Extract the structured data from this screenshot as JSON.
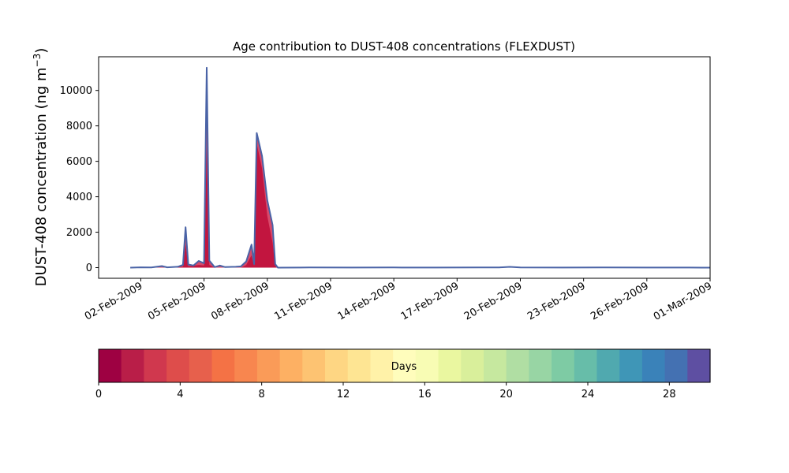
{
  "chart_data": {
    "type": "area",
    "title": "Age contribution to DUST-408 concentrations (FLEXDUST)",
    "ylabel_prefix": "DUST-408 concentration (ng m",
    "ylabel_superscript": "−3",
    "ylabel_suffix": ")",
    "xlabel": "",
    "date_start": "2009-01-31",
    "date_end": "2009-03-01",
    "ylim": [
      -600,
      11900
    ],
    "yticks": [
      0,
      2000,
      4000,
      6000,
      8000,
      10000
    ],
    "xticks": [
      "2009-02-02",
      "2009-02-05",
      "2009-02-08",
      "2009-02-11",
      "2009-02-14",
      "2009-02-17",
      "2009-02-20",
      "2009-02-23",
      "2009-02-26",
      "2009-03-01"
    ],
    "xtick_labels": [
      "02-Feb-2009",
      "05-Feb-2009",
      "08-Feb-2009",
      "11-Feb-2009",
      "14-Feb-2009",
      "17-Feb-2009",
      "20-Feb-2009",
      "23-Feb-2009",
      "26-Feb-2009",
      "01-Mar-2009"
    ],
    "grid": false,
    "series_total": {
      "name": "",
      "points": [
        [
          "2009-02-01T12:00",
          0
        ],
        [
          "2009-02-02T00:00",
          20
        ],
        [
          "2009-02-02T12:00",
          10
        ],
        [
          "2009-02-03T00:00",
          90
        ],
        [
          "2009-02-03T06:00",
          20
        ],
        [
          "2009-02-03T18:00",
          50
        ],
        [
          "2009-02-04T00:00",
          150
        ],
        [
          "2009-02-04T03:00",
          2280
        ],
        [
          "2009-02-04T06:00",
          180
        ],
        [
          "2009-02-04T12:00",
          120
        ],
        [
          "2009-02-04T18:00",
          380
        ],
        [
          "2009-02-05T00:00",
          250
        ],
        [
          "2009-02-05T03:00",
          11280
        ],
        [
          "2009-02-05T06:00",
          400
        ],
        [
          "2009-02-05T12:00",
          30
        ],
        [
          "2009-02-05T18:00",
          120
        ],
        [
          "2009-02-06T00:00",
          30
        ],
        [
          "2009-02-06T12:00",
          50
        ],
        [
          "2009-02-06T18:00",
          70
        ],
        [
          "2009-02-07T00:00",
          350
        ],
        [
          "2009-02-07T06:00",
          1300
        ],
        [
          "2009-02-07T09:00",
          200
        ],
        [
          "2009-02-07T12:00",
          7600
        ],
        [
          "2009-02-07T18:00",
          6300
        ],
        [
          "2009-02-08T00:00",
          3800
        ],
        [
          "2009-02-08T06:00",
          2400
        ],
        [
          "2009-02-08T09:00",
          200
        ],
        [
          "2009-02-08T12:00",
          0
        ],
        [
          "2009-02-10T00:00",
          10
        ],
        [
          "2009-02-12T00:00",
          5
        ],
        [
          "2009-02-14T00:00",
          8
        ],
        [
          "2009-02-16T00:00",
          5
        ],
        [
          "2009-02-18T00:00",
          10
        ],
        [
          "2009-02-19T00:00",
          15
        ],
        [
          "2009-02-19T12:00",
          45
        ],
        [
          "2009-02-20T00:00",
          10
        ],
        [
          "2009-02-22T00:00",
          5
        ],
        [
          "2009-02-24T00:00",
          8
        ],
        [
          "2009-02-26T00:00",
          5
        ],
        [
          "2009-02-28T00:00",
          5
        ],
        [
          "2009-03-01T00:00",
          0
        ]
      ]
    },
    "series_young": {
      "name": "",
      "points": [
        [
          "2009-02-03T00:00",
          0
        ],
        [
          "2009-02-04T00:00",
          60
        ],
        [
          "2009-02-04T03:00",
          1300
        ],
        [
          "2009-02-04T06:00",
          80
        ],
        [
          "2009-02-04T18:00",
          150
        ],
        [
          "2009-02-05T00:00",
          120
        ],
        [
          "2009-02-05T03:00",
          6800
        ],
        [
          "2009-02-05T06:00",
          150
        ],
        [
          "2009-02-05T12:00",
          0
        ],
        [
          "2009-02-06T18:00",
          0
        ],
        [
          "2009-02-07T00:00",
          150
        ],
        [
          "2009-02-07T06:00",
          700
        ],
        [
          "2009-02-07T09:00",
          100
        ],
        [
          "2009-02-07T12:00",
          7000
        ],
        [
          "2009-02-07T18:00",
          5600
        ],
        [
          "2009-02-08T00:00",
          2900
        ],
        [
          "2009-02-08T06:00",
          1400
        ],
        [
          "2009-02-08T09:00",
          100
        ],
        [
          "2009-02-08T12:00",
          0
        ]
      ]
    }
  },
  "colorbar": {
    "label": "Days",
    "vmin": 0,
    "vmax": 30,
    "ticks": [
      0,
      4,
      8,
      12,
      16,
      20,
      24,
      28
    ],
    "tick_labels": [
      "0",
      "4",
      "8",
      "12",
      "16",
      "20",
      "24",
      "28"
    ],
    "colors": [
      "#9e0142",
      "#b91e48",
      "#d0384e",
      "#de4d4b",
      "#e7604c",
      "#f47245",
      "#f8864f",
      "#fa9b58",
      "#fdb063",
      "#fdc372",
      "#fed683",
      "#fee593",
      "#fff2a8",
      "#fffdbc",
      "#f8fcb4",
      "#eaf7a0",
      "#d9ef9b",
      "#c6e89f",
      "#b0dea3",
      "#98d5a4",
      "#7ecba4",
      "#67bda9",
      "#50a9af",
      "#3f96b7",
      "#3a82b9",
      "#4471b2",
      "#5e4fa2"
    ]
  },
  "colors": {
    "total_line": "#4a63a6",
    "young_fill": "#c2153f",
    "mid_fill": "#d84a6a"
  }
}
